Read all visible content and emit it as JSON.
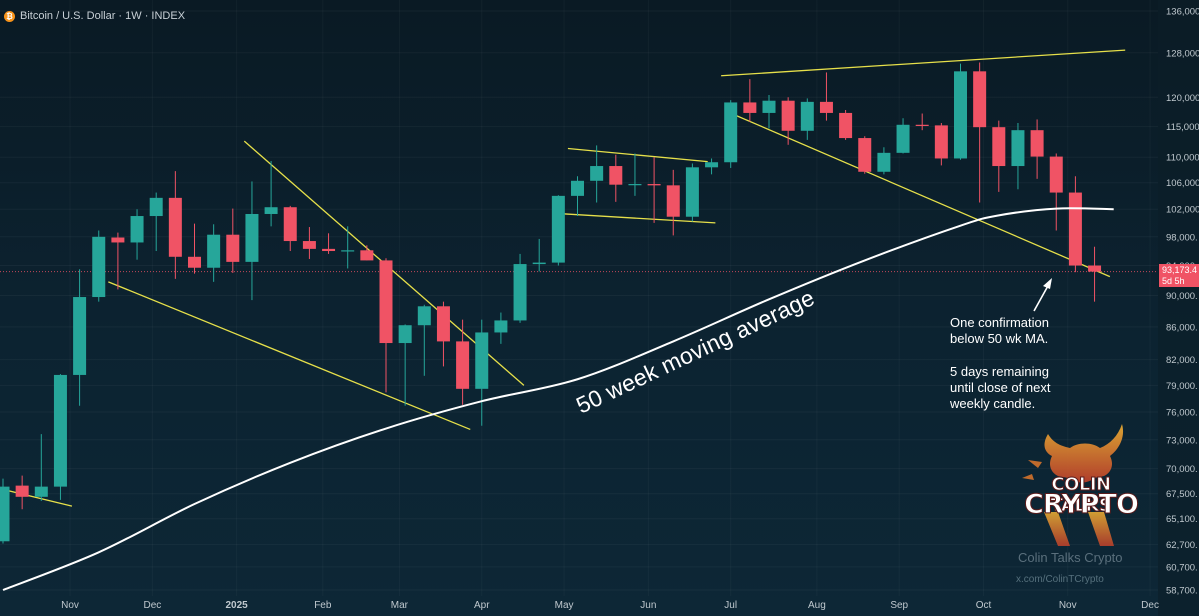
{
  "header": {
    "title": "Bitcoin / U.S. Dollar · 1W · INDEX",
    "icon": "bitcoin-icon"
  },
  "colors": {
    "up": "#26a69a",
    "down": "#f05365",
    "trendline": "#e6e04a",
    "ma": "#ffffff",
    "background": "#0b1f2a"
  },
  "chart_data": {
    "type": "candlestick",
    "interval": "1W",
    "y_axis": {
      "scale": "log",
      "ylim": [
        58700,
        136000
      ],
      "ticks": [
        136000,
        128000,
        120000,
        115000,
        110000,
        106000,
        102000,
        98000,
        94000,
        90000,
        86000,
        82000,
        79000,
        76000,
        73000,
        70000,
        67500,
        65100,
        62700,
        60700,
        58700
      ],
      "tick_labels": [
        "136,000",
        "128,000",
        "120,000",
        "115,000",
        "110,000",
        "106,000",
        "102,000",
        "98,000.",
        "94,000.",
        "90,000.",
        "86,000.",
        "82,000.",
        "79,000.",
        "76,000.",
        "73,000.",
        "70,000.",
        "67,500.",
        "65,100.",
        "62,700.",
        "60,700.",
        "58,700."
      ]
    },
    "x_axis": {
      "labels": [
        {
          "label": "Nov",
          "week": 3.5
        },
        {
          "label": "Dec",
          "week": 7.8
        },
        {
          "label": "2025",
          "week": 12.2
        },
        {
          "label": "Feb",
          "week": 16.7
        },
        {
          "label": "Mar",
          "week": 20.7
        },
        {
          "label": "Apr",
          "week": 25.0
        },
        {
          "label": "May",
          "week": 29.3
        },
        {
          "label": "Jun",
          "week": 33.7
        },
        {
          "label": "Jul",
          "week": 38.0
        },
        {
          "label": "Aug",
          "week": 42.5
        },
        {
          "label": "Sep",
          "week": 46.8
        },
        {
          "label": "Oct",
          "week": 51.2
        },
        {
          "label": "Nov",
          "week": 55.6
        },
        {
          "label": "Dec",
          "week": 59.9
        }
      ]
    },
    "candles": [
      {
        "o": 63000,
        "h": 69000,
        "l": 62800,
        "c": 68200
      },
      {
        "o": 68300,
        "h": 69300,
        "l": 66000,
        "c": 67200
      },
      {
        "o": 67200,
        "h": 73600,
        "l": 66800,
        "c": 68200
      },
      {
        "o": 68200,
        "h": 80300,
        "l": 66900,
        "c": 80200
      },
      {
        "o": 80200,
        "h": 93500,
        "l": 76700,
        "c": 89800
      },
      {
        "o": 89800,
        "h": 98900,
        "l": 89200,
        "c": 98000
      },
      {
        "o": 97900,
        "h": 98600,
        "l": 90800,
        "c": 97200
      },
      {
        "o": 97200,
        "h": 102000,
        "l": 94800,
        "c": 101000
      },
      {
        "o": 101000,
        "h": 104500,
        "l": 96000,
        "c": 103700
      },
      {
        "o": 103700,
        "h": 107800,
        "l": 92200,
        "c": 95200
      },
      {
        "o": 95200,
        "h": 99900,
        "l": 92900,
        "c": 93700
      },
      {
        "o": 93700,
        "h": 99800,
        "l": 91800,
        "c": 98300
      },
      {
        "o": 98300,
        "h": 102100,
        "l": 93000,
        "c": 94500
      },
      {
        "o": 94500,
        "h": 106200,
        "l": 89400,
        "c": 101300
      },
      {
        "o": 101300,
        "h": 109400,
        "l": 99500,
        "c": 102300
      },
      {
        "o": 102300,
        "h": 102500,
        "l": 96000,
        "c": 97400
      },
      {
        "o": 97400,
        "h": 99400,
        "l": 94900,
        "c": 96300
      },
      {
        "o": 96300,
        "h": 98500,
        "l": 95600,
        "c": 96000
      },
      {
        "o": 96000,
        "h": 99500,
        "l": 93600,
        "c": 96100
      },
      {
        "o": 96100,
        "h": 96800,
        "l": 94700,
        "c": 94700
      },
      {
        "o": 94700,
        "h": 95000,
        "l": 78200,
        "c": 84000
      },
      {
        "o": 84000,
        "h": 86300,
        "l": 76700,
        "c": 86200
      },
      {
        "o": 86200,
        "h": 88800,
        "l": 80100,
        "c": 88600
      },
      {
        "o": 88600,
        "h": 89200,
        "l": 81200,
        "c": 84200
      },
      {
        "o": 84200,
        "h": 86900,
        "l": 76800,
        "c": 78600
      },
      {
        "o": 78600,
        "h": 86900,
        "l": 74500,
        "c": 85300
      },
      {
        "o": 85300,
        "h": 87800,
        "l": 83900,
        "c": 86800
      },
      {
        "o": 86800,
        "h": 95600,
        "l": 86500,
        "c": 94200
      },
      {
        "o": 94200,
        "h": 97700,
        "l": 93200,
        "c": 94400
      },
      {
        "o": 94400,
        "h": 104100,
        "l": 94000,
        "c": 104000
      },
      {
        "o": 104000,
        "h": 107000,
        "l": 101000,
        "c": 106300
      },
      {
        "o": 106300,
        "h": 111900,
        "l": 103000,
        "c": 108600
      },
      {
        "o": 108600,
        "h": 110400,
        "l": 103100,
        "c": 105700
      },
      {
        "o": 105700,
        "h": 110600,
        "l": 104000,
        "c": 105800
      },
      {
        "o": 105800,
        "h": 110000,
        "l": 100000,
        "c": 105600
      },
      {
        "o": 105600,
        "h": 108000,
        "l": 98200,
        "c": 100900
      },
      {
        "o": 100900,
        "h": 109000,
        "l": 100200,
        "c": 108400
      },
      {
        "o": 108400,
        "h": 109800,
        "l": 107300,
        "c": 109200
      },
      {
        "o": 109200,
        "h": 119500,
        "l": 108300,
        "c": 119100
      },
      {
        "o": 119100,
        "h": 123200,
        "l": 115800,
        "c": 117300
      },
      {
        "o": 117300,
        "h": 120400,
        "l": 114700,
        "c": 119400
      },
      {
        "o": 119400,
        "h": 120000,
        "l": 112000,
        "c": 114300
      },
      {
        "o": 114300,
        "h": 119800,
        "l": 112800,
        "c": 119200
      },
      {
        "o": 119200,
        "h": 124400,
        "l": 116000,
        "c": 117300
      },
      {
        "o": 117300,
        "h": 117800,
        "l": 112800,
        "c": 113100
      },
      {
        "o": 113100,
        "h": 113400,
        "l": 107400,
        "c": 107700
      },
      {
        "o": 107700,
        "h": 111600,
        "l": 107300,
        "c": 110700
      },
      {
        "o": 110700,
        "h": 116400,
        "l": 110600,
        "c": 115300
      },
      {
        "o": 115300,
        "h": 117200,
        "l": 114400,
        "c": 115200
      },
      {
        "o": 115200,
        "h": 115600,
        "l": 108700,
        "c": 109800
      },
      {
        "o": 109800,
        "h": 126000,
        "l": 109600,
        "c": 124600
      },
      {
        "o": 124600,
        "h": 126200,
        "l": 103000,
        "c": 114900
      },
      {
        "o": 114900,
        "h": 116000,
        "l": 104600,
        "c": 108600
      },
      {
        "o": 108600,
        "h": 115600,
        "l": 105000,
        "c": 114400
      },
      {
        "o": 114400,
        "h": 116200,
        "l": 106600,
        "c": 110100
      },
      {
        "o": 110100,
        "h": 110600,
        "l": 98900,
        "c": 104500
      },
      {
        "o": 104500,
        "h": 107000,
        "l": 93100,
        "c": 94000
      },
      {
        "o": 94000,
        "h": 96600,
        "l": 89200,
        "c": 93173
      }
    ],
    "moving_average": {
      "name": "50 week moving average",
      "points": [
        [
          0,
          58700
        ],
        [
          5,
          62000
        ],
        [
          10,
          66500
        ],
        [
          15,
          70600
        ],
        [
          20,
          74200
        ],
        [
          25,
          77200
        ],
        [
          30,
          79700
        ],
        [
          35,
          84200
        ],
        [
          40,
          89500
        ],
        [
          45,
          94700
        ],
        [
          50,
          99600
        ],
        [
          52,
          101100
        ],
        [
          55,
          102100
        ],
        [
          58,
          102000
        ]
      ]
    },
    "trendlines": [
      {
        "from": [
          -0.6,
          68200
        ],
        "to": [
          3.6,
          66300
        ]
      },
      {
        "from": [
          5.5,
          91800
        ],
        "to": [
          24.4,
          74100
        ]
      },
      {
        "from": [
          12.6,
          112600
        ],
        "to": [
          27.2,
          79000
        ]
      },
      {
        "from": [
          28.8,
          101400
        ],
        "to": [
          37.2,
          100000
        ]
      },
      {
        "from": [
          29.5,
          111400
        ],
        "to": [
          36.8,
          109300
        ]
      },
      {
        "from": [
          37.9,
          117400
        ],
        "to": [
          57.8,
          92500
        ]
      },
      {
        "from": [
          37.5,
          123800
        ],
        "to": [
          58.6,
          128500
        ]
      }
    ],
    "last_price": {
      "value": 93173,
      "label": "93,173.4",
      "countdown": "5d 5h"
    },
    "annotations": {
      "ma_label": "50 week moving average",
      "note_line1": "One confirmation\nbelow 50 wk MA.",
      "note_line2": "5 days remaining\nuntil close of next\nweekly candle."
    }
  },
  "watermark": {
    "logo_line1": "COLIN TALKS",
    "logo_line2": "CRYPTO",
    "name": "Colin Talks Crypto",
    "handle": "x.com/ColinTCrypto"
  }
}
